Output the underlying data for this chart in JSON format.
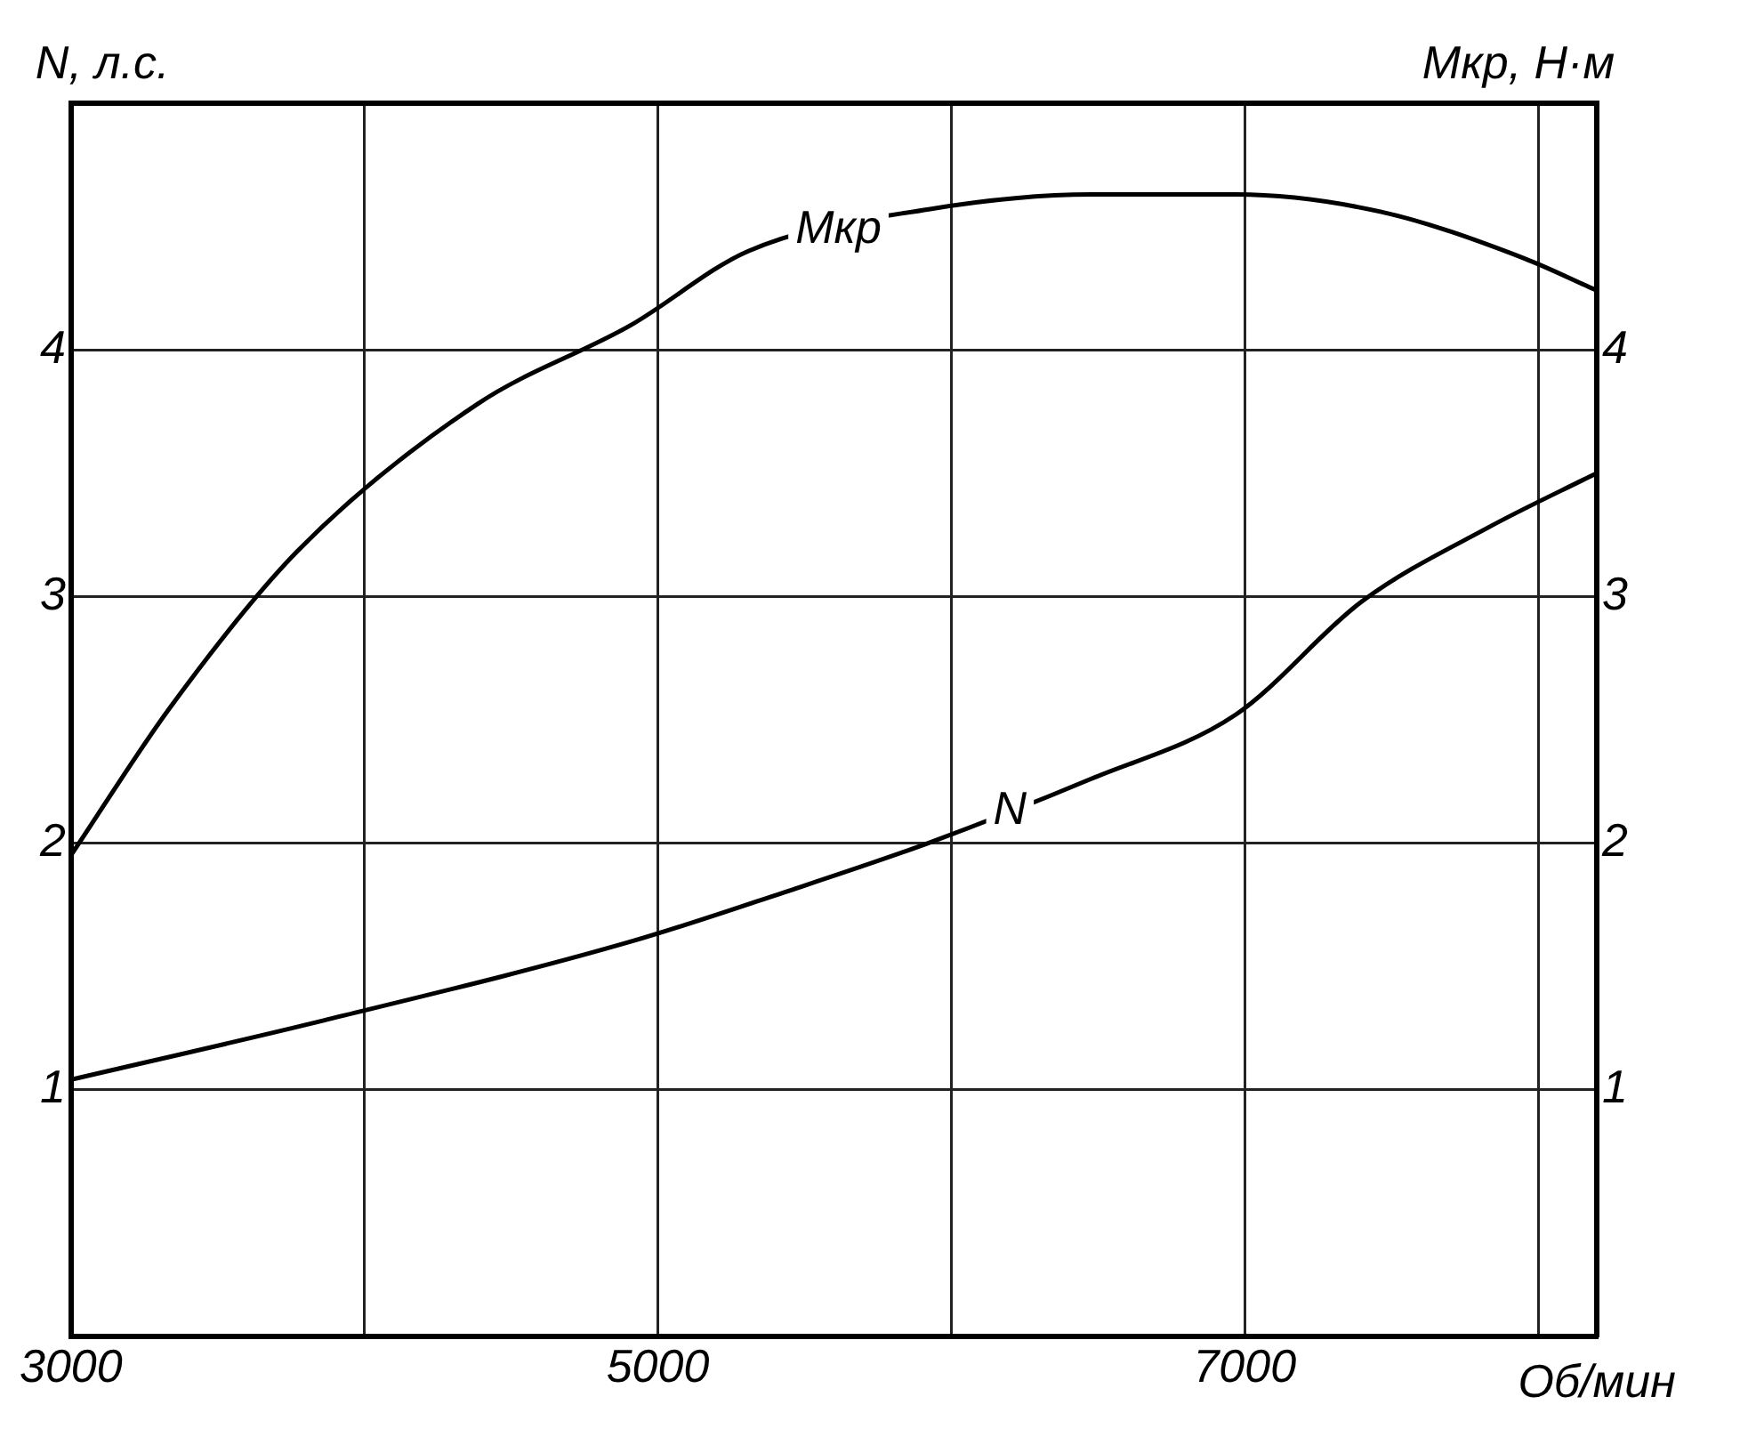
{
  "chart_data": {
    "type": "line",
    "xlabel": "Об/мин",
    "ylabel": "N, л.с.",
    "y2label": "Мкр, Н·м",
    "xlim": [
      3000,
      8200
    ],
    "xticks": [
      3000,
      {
        "value": 4000,
        "label": null
      },
      5000,
      {
        "value": 6000,
        "label": null
      },
      7000,
      {
        "value": 8000,
        "label": null
      }
    ],
    "ylim": [
      0,
      5
    ],
    "yticks": [
      1,
      2,
      3,
      4
    ],
    "y2lim": [
      0,
      5
    ],
    "y2ticks": [
      1,
      2,
      3,
      4
    ],
    "series": [
      {
        "name": "Мкр",
        "color": "#000000",
        "x": [
          3000,
          3338,
          3769,
          4385,
          4908,
          5308,
          5923,
          6477,
          6969,
          7462,
          7954,
          8200
        ],
        "values": [
          1.95,
          2.55,
          3.18,
          3.78,
          4.1,
          4.4,
          4.57,
          4.63,
          4.63,
          4.56,
          4.37,
          4.24
        ]
      },
      {
        "name": "N",
        "color": "#000000",
        "x": [
          3000,
          3861,
          4908,
          5431,
          5923,
          6477,
          6969,
          7400,
          7831,
          8200
        ],
        "values": [
          1.04,
          1.28,
          1.6,
          1.8,
          2.0,
          2.26,
          2.52,
          2.98,
          3.28,
          3.5
        ]
      }
    ],
    "grid": true,
    "legend": false,
    "marker": "none",
    "line_style": "solid"
  }
}
